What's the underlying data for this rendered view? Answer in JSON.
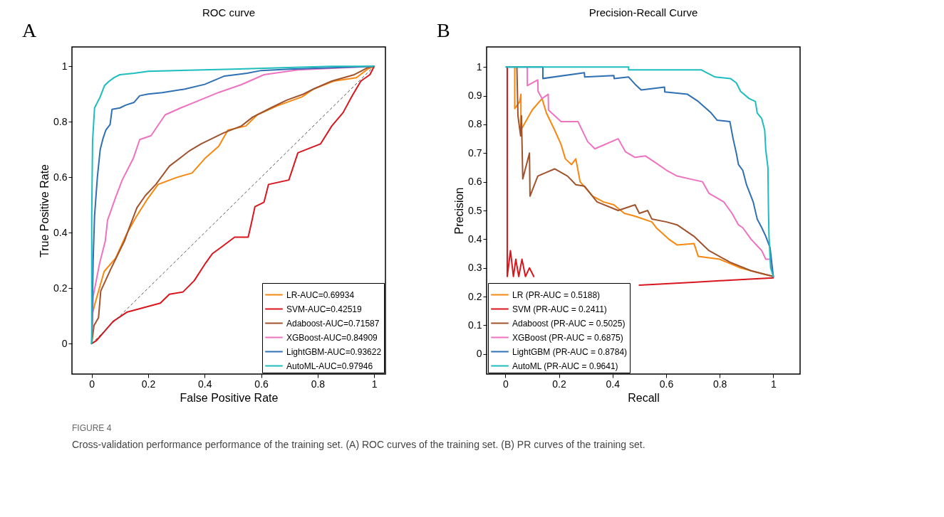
{
  "chart_data": [
    {
      "type": "line",
      "title": "ROC curve",
      "xlabel": "False Positive Rate",
      "ylabel": "True Positive Rate",
      "xlim": [
        -0.07,
        1.04
      ],
      "ylim": [
        -0.11,
        1.07
      ],
      "xticks": [
        0,
        0.2,
        0.4,
        0.6,
        0.8,
        1
      ],
      "yticks": [
        0,
        0.2,
        0.4,
        0.6,
        0.8,
        1
      ],
      "grid": false,
      "legend": "bottom right",
      "annotations": [
        "A"
      ],
      "series": [
        {
          "name": "LR-AUC=0.69934",
          "color": "#f7870f",
          "x": [
            0,
            0.003,
            0.012,
            0.044,
            0.084,
            0.124,
            0.155,
            0.195,
            0.235,
            0.3,
            0.355,
            0.403,
            0.45,
            0.482,
            0.546,
            0.586,
            0.658,
            0.745,
            0.785,
            0.857,
            0.937,
            0.977,
            1
          ],
          "values": [
            0,
            0.11,
            0.146,
            0.26,
            0.307,
            0.396,
            0.453,
            0.518,
            0.574,
            0.599,
            0.615,
            0.67,
            0.712,
            0.77,
            0.785,
            0.825,
            0.858,
            0.89,
            0.918,
            0.947,
            0.959,
            0.99,
            1
          ]
        },
        {
          "name": "SVM-AUC=0.42519",
          "color": "#d9161e",
          "x": [
            0,
            0.016,
            0.076,
            0.124,
            0.243,
            0.275,
            0.323,
            0.363,
            0.403,
            0.427,
            0.459,
            0.506,
            0.554,
            0.566,
            0.578,
            0.61,
            0.626,
            0.698,
            0.73,
            0.81,
            0.85,
            0.89,
            0.92,
            0.953,
            0.985,
            1
          ],
          "values": [
            0,
            0.01,
            0.08,
            0.113,
            0.146,
            0.178,
            0.186,
            0.227,
            0.29,
            0.324,
            0.348,
            0.384,
            0.384,
            0.437,
            0.494,
            0.51,
            0.574,
            0.59,
            0.688,
            0.72,
            0.785,
            0.833,
            0.89,
            0.947,
            0.97,
            1
          ]
        },
        {
          "name": "Adaboost-AUC=0.71587",
          "color": "#a0522d",
          "x": [
            0,
            0.008,
            0.024,
            0.032,
            0.068,
            0.116,
            0.13,
            0.16,
            0.19,
            0.227,
            0.275,
            0.347,
            0.387,
            0.467,
            0.53,
            0.57,
            0.634,
            0.69,
            0.745,
            0.785,
            0.85,
            0.93,
            0.977,
            1
          ],
          "values": [
            0,
            0.065,
            0.093,
            0.19,
            0.27,
            0.37,
            0.41,
            0.49,
            0.534,
            0.574,
            0.64,
            0.696,
            0.72,
            0.76,
            0.785,
            0.817,
            0.85,
            0.878,
            0.898,
            0.918,
            0.947,
            0.97,
            0.995,
            1
          ]
        },
        {
          "name": "XGBoost-AUC=0.84909",
          "color": "#ee72c0",
          "x": [
            0,
            0.005,
            0.028,
            0.048,
            0.056,
            0.084,
            0.108,
            0.148,
            0.17,
            0.21,
            0.26,
            0.315,
            0.387,
            0.45,
            0.53,
            0.61,
            0.73,
            0.89,
            1
          ],
          "values": [
            0,
            0.17,
            0.29,
            0.37,
            0.445,
            0.526,
            0.59,
            0.67,
            0.736,
            0.75,
            0.825,
            0.85,
            0.88,
            0.906,
            0.934,
            0.97,
            0.987,
            0.995,
            1
          ]
        },
        {
          "name": "LightGBM-AUC=0.93622",
          "color": "#2f6fb3",
          "x": [
            0,
            0.005,
            0.01,
            0.02,
            0.03,
            0.04,
            0.05,
            0.065,
            0.072,
            0.1,
            0.12,
            0.15,
            0.17,
            0.2,
            0.25,
            0.33,
            0.4,
            0.47,
            0.55,
            0.6,
            0.7,
            0.85,
            1
          ],
          "values": [
            0,
            0.3,
            0.46,
            0.6,
            0.7,
            0.74,
            0.77,
            0.79,
            0.845,
            0.85,
            0.86,
            0.87,
            0.894,
            0.9,
            0.905,
            0.918,
            0.935,
            0.965,
            0.975,
            0.985,
            0.99,
            0.995,
            1
          ]
        },
        {
          "name": "AutoML-AUC=0.97946",
          "color": "#1dbdbd",
          "x": [
            0,
            0,
            0.003,
            0.01,
            0.02,
            0.03,
            0.045,
            0.06,
            0.08,
            0.1,
            0.15,
            0.2,
            0.5,
            0.85,
            1
          ],
          "values": [
            0,
            0.46,
            0.73,
            0.85,
            0.87,
            0.89,
            0.93,
            0.945,
            0.96,
            0.97,
            0.975,
            0.982,
            0.99,
            1,
            1
          ]
        },
        {
          "color": "#555555",
          "line_style": "dashed",
          "x": [
            0,
            1
          ],
          "values": [
            0,
            1
          ]
        }
      ]
    },
    {
      "type": "line",
      "title": "Precision-Recall Curve",
      "xlabel": "Recall",
      "ylabel": "Precision",
      "xlim": [
        -0.07,
        1.1
      ],
      "ylim": [
        -0.07,
        1.07
      ],
      "xticks": [
        0,
        0.2,
        0.4,
        0.6,
        0.8,
        1
      ],
      "yticks": [
        0,
        0.1,
        0.2,
        0.3,
        0.4,
        0.5,
        0.6,
        0.7,
        0.8,
        0.9,
        1
      ],
      "grid": false,
      "legend": "bottom left",
      "annotations": [
        "B",
        "FIGURE 4",
        "Cross-validation performance performance of the training set. (A) ROC curves of the training set. (B) PR curves of the training set."
      ],
      "series": [
        {
          "name": "LR (PR-AUC = 0.5188)",
          "color": "#f7870f",
          "x": [
            0.035,
            0.035,
            0.054,
            0.058,
            0.058,
            0.1,
            0.137,
            0.153,
            0.184,
            0.208,
            0.224,
            0.247,
            0.263,
            0.279,
            0.326,
            0.366,
            0.405,
            0.444,
            0.484,
            0.547,
            0.563,
            0.61,
            0.641,
            0.704,
            0.72,
            0.8,
            0.878,
            0.957,
            1
          ],
          "values": [
            1,
            0.855,
            0.88,
            0.905,
            0.78,
            0.85,
            0.89,
            0.84,
            0.78,
            0.73,
            0.68,
            0.66,
            0.68,
            0.6,
            0.55,
            0.53,
            0.52,
            0.49,
            0.48,
            0.46,
            0.44,
            0.4,
            0.38,
            0.385,
            0.34,
            0.33,
            0.3,
            0.28,
            0.27
          ]
        },
        {
          "name": "SVM (PR-AUC = 0.2411)",
          "color": "#d9161e",
          "x": [
            0.007,
            0.007,
            0.019,
            0.03,
            0.039,
            0.05,
            0.062,
            0.075,
            0.09,
            0.106,
            0.2,
            0.5,
            0.6,
            0.7,
            0.8,
            0.9,
            1
          ],
          "values": [
            1,
            0.27,
            0.36,
            0.27,
            0.33,
            0.27,
            0.33,
            0.27,
            0.3,
            0.27,
            null,
            0.24,
            0.245,
            0.25,
            0.255,
            0.26,
            0.265
          ]
        },
        {
          "name": "Adaboost (PR-AUC = 0.5025)",
          "color": "#a0522d",
          "x": [
            0.043,
            0.047,
            0.057,
            0.06,
            0.065,
            0.09,
            0.092,
            0.121,
            0.184,
            0.232,
            0.263,
            0.295,
            0.342,
            0.421,
            0.484,
            0.5,
            0.531,
            0.547,
            0.602,
            0.641,
            0.704,
            0.76,
            0.838,
            0.917,
            1
          ],
          "values": [
            1,
            0.83,
            0.76,
            0.83,
            0.61,
            0.7,
            0.55,
            0.62,
            0.645,
            0.62,
            0.59,
            0.585,
            0.53,
            0.5,
            0.52,
            0.49,
            0.5,
            0.47,
            0.46,
            0.45,
            0.41,
            0.36,
            0.32,
            0.29,
            0.27
          ]
        },
        {
          "name": "XGBoost (PR-AUC = 0.6875)",
          "color": "#ee72c0",
          "x": [
            0.082,
            0.082,
            0.121,
            0.122,
            0.137,
            0.16,
            0.161,
            0.208,
            0.271,
            0.307,
            0.334,
            0.421,
            0.448,
            0.484,
            0.523,
            0.563,
            0.602,
            0.641,
            0.689,
            0.736,
            0.76,
            0.815,
            0.846,
            0.87,
            0.886,
            0.917,
            0.957,
            0.972,
            0.988,
            1
          ],
          "values": [
            1,
            0.935,
            0.955,
            0.915,
            0.89,
            0.905,
            0.85,
            0.81,
            0.81,
            0.74,
            0.715,
            0.75,
            0.705,
            0.685,
            0.69,
            0.665,
            0.64,
            0.62,
            0.61,
            0.6,
            0.56,
            0.53,
            0.49,
            0.45,
            0.44,
            0.4,
            0.36,
            0.33,
            0.33,
            0.27
          ]
        },
        {
          "name": "LightGBM (PR-AUC = 0.8784)",
          "color": "#2f6fb3",
          "x": [
            0.003,
            0.14,
            0.14,
            0.295,
            0.296,
            0.405,
            0.406,
            0.46,
            0.484,
            0.507,
            0.594,
            0.595,
            0.68,
            0.72,
            0.768,
            0.79,
            0.838,
            0.85,
            0.862,
            0.87,
            0.886,
            0.9,
            0.925,
            0.94,
            0.957,
            0.972,
            0.988,
            1
          ],
          "values": [
            1,
            1,
            0.96,
            0.98,
            0.965,
            0.97,
            0.96,
            0.965,
            0.94,
            0.92,
            0.93,
            0.913,
            0.905,
            0.88,
            0.84,
            0.815,
            0.81,
            0.75,
            0.7,
            0.66,
            0.64,
            0.59,
            0.53,
            0.47,
            0.44,
            0.41,
            0.37,
            0.27
          ]
        },
        {
          "name": "AutoML (PR-AUC = 0.9641)",
          "color": "#1dbdbd",
          "x": [
            0.003,
            0.46,
            0.46,
            0.732,
            0.752,
            0.783,
            0.84,
            0.862,
            0.878,
            0.91,
            0.933,
            0.94,
            0.957,
            0.968,
            0.972,
            0.98,
            0.982,
            0.984,
            0.99,
            1
          ],
          "values": [
            1,
            1,
            0.99,
            0.99,
            0.98,
            0.965,
            0.96,
            0.945,
            0.915,
            0.89,
            0.88,
            0.84,
            0.82,
            0.78,
            0.71,
            0.65,
            0.5,
            0.41,
            0.3,
            0.27
          ]
        }
      ]
    }
  ]
}
